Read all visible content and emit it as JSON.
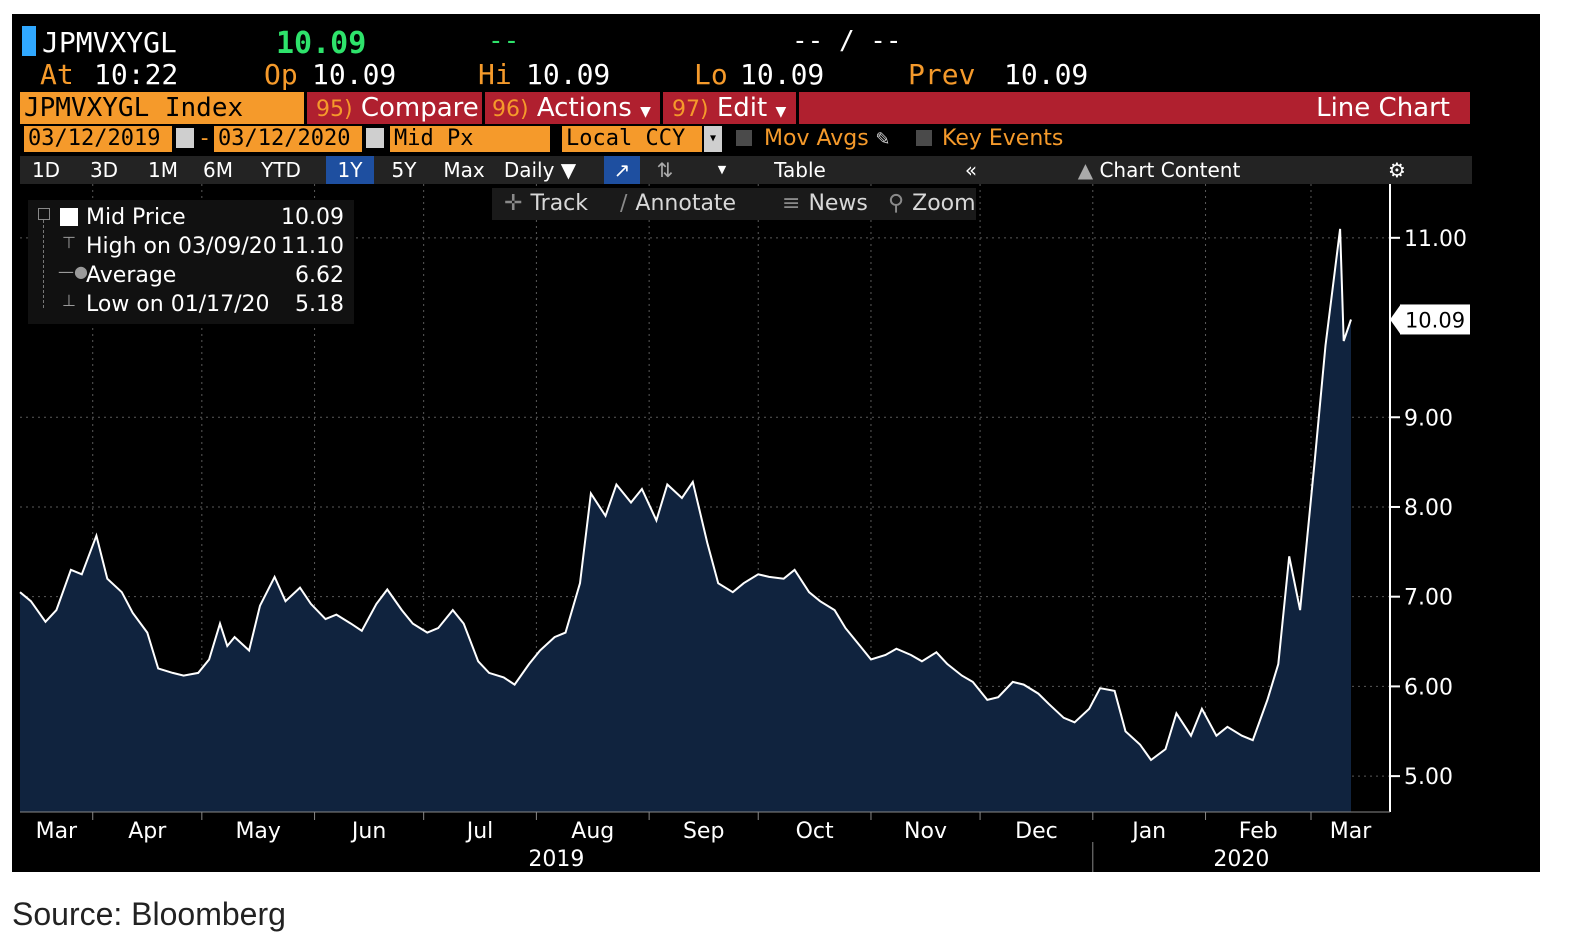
{
  "header": {
    "ticker": "JPMVXYGL",
    "last_price": "10.09",
    "change": "--",
    "bid_ask": "-- / --",
    "at_label": "At",
    "at_time": "10:22",
    "op_label": "Op",
    "op_value": "10.09",
    "hi_label": "Hi",
    "hi_value": "10.09",
    "lo_label": "Lo",
    "lo_value": "10.09",
    "prev_label": "Prev",
    "prev_value": "10.09"
  },
  "command_bar": {
    "security": "JPMVXYGL Index",
    "compare_num": "95)",
    "compare": "Compare",
    "actions_num": "96)",
    "actions": "Actions",
    "edit_num": "97)",
    "edit": "Edit",
    "chart_title": "Line Chart"
  },
  "settings": {
    "start_date": "03/12/2019",
    "end_date": "03/12/2020",
    "date_sep": "-",
    "field": "Mid Px",
    "currency": "Local CCY",
    "mov_avgs": "Mov Avgs",
    "key_events": "Key Events"
  },
  "periods": [
    "1D",
    "3D",
    "1M",
    "6M",
    "YTD",
    "1Y",
    "5Y",
    "Max"
  ],
  "active_period": "1Y",
  "toolbar": {
    "frequency": "Daily",
    "table": "Table",
    "collapse": "«",
    "chart_content": "Chart Content"
  },
  "tools": {
    "track": "Track",
    "annotate": "Annotate",
    "news": "News",
    "zoom": "Zoom"
  },
  "legend": {
    "mid_price_label": "Mid Price",
    "mid_price_value": "10.09",
    "high_label": "High on 03/09/20",
    "high_value": "11.10",
    "average_label": "Average",
    "average_value": "6.62",
    "low_label": "Low on 01/17/20",
    "low_value": "5.18"
  },
  "source": "Source: Bloomberg",
  "colors": {
    "background": "#000000",
    "area_fill": "#10233e",
    "line": "#ffffff",
    "accent_orange": "#f59a2b",
    "accent_red": "#b0202f",
    "last_green": "#2ee36b"
  },
  "chart_data": {
    "type": "area",
    "series_name": "Mid Price",
    "x_labels": [
      "Mar",
      "Apr",
      "May",
      "Jun",
      "Jul",
      "Aug",
      "Sep",
      "Oct",
      "Nov",
      "Dec",
      "Jan",
      "Feb",
      "Mar"
    ],
    "year_labels": [
      "2019",
      "2020"
    ],
    "y_ticks": [
      "5.00",
      "6.00",
      "7.00",
      "8.00",
      "9.00",
      "11.00"
    ],
    "ylim": [
      4.6,
      11.6
    ],
    "last_value_label": "10.09",
    "grid": true,
    "points": [
      [
        "2019-03-12",
        7.05
      ],
      [
        "2019-03-15",
        6.95
      ],
      [
        "2019-03-19",
        6.72
      ],
      [
        "2019-03-22",
        6.85
      ],
      [
        "2019-03-26",
        7.3
      ],
      [
        "2019-03-29",
        7.25
      ],
      [
        "2019-04-02",
        7.68
      ],
      [
        "2019-04-05",
        7.2
      ],
      [
        "2019-04-09",
        7.05
      ],
      [
        "2019-04-12",
        6.82
      ],
      [
        "2019-04-16",
        6.6
      ],
      [
        "2019-04-19",
        6.2
      ],
      [
        "2019-04-23",
        6.15
      ],
      [
        "2019-04-26",
        6.12
      ],
      [
        "2019-04-30",
        6.15
      ],
      [
        "2019-05-03",
        6.3
      ],
      [
        "2019-05-06",
        6.7
      ],
      [
        "2019-05-08",
        6.45
      ],
      [
        "2019-05-10",
        6.55
      ],
      [
        "2019-05-14",
        6.4
      ],
      [
        "2019-05-17",
        6.9
      ],
      [
        "2019-05-21",
        7.22
      ],
      [
        "2019-05-24",
        6.95
      ],
      [
        "2019-05-28",
        7.1
      ],
      [
        "2019-05-31",
        6.92
      ],
      [
        "2019-06-04",
        6.75
      ],
      [
        "2019-06-07",
        6.8
      ],
      [
        "2019-06-11",
        6.7
      ],
      [
        "2019-06-14",
        6.62
      ],
      [
        "2019-06-18",
        6.92
      ],
      [
        "2019-06-21",
        7.08
      ],
      [
        "2019-06-25",
        6.85
      ],
      [
        "2019-06-28",
        6.7
      ],
      [
        "2019-07-02",
        6.6
      ],
      [
        "2019-07-05",
        6.65
      ],
      [
        "2019-07-09",
        6.85
      ],
      [
        "2019-07-12",
        6.7
      ],
      [
        "2019-07-16",
        6.28
      ],
      [
        "2019-07-19",
        6.15
      ],
      [
        "2019-07-23",
        6.1
      ],
      [
        "2019-07-26",
        6.02
      ],
      [
        "2019-07-30",
        6.25
      ],
      [
        "2019-08-02",
        6.4
      ],
      [
        "2019-08-06",
        6.55
      ],
      [
        "2019-08-09",
        6.6
      ],
      [
        "2019-08-13",
        7.15
      ],
      [
        "2019-08-16",
        8.15
      ],
      [
        "2019-08-20",
        7.9
      ],
      [
        "2019-08-23",
        8.25
      ],
      [
        "2019-08-27",
        8.05
      ],
      [
        "2019-08-30",
        8.2
      ],
      [
        "2019-09-03",
        7.85
      ],
      [
        "2019-09-06",
        8.25
      ],
      [
        "2019-09-10",
        8.1
      ],
      [
        "2019-09-13",
        8.28
      ],
      [
        "2019-09-17",
        7.6
      ],
      [
        "2019-09-20",
        7.15
      ],
      [
        "2019-09-24",
        7.05
      ],
      [
        "2019-09-27",
        7.15
      ],
      [
        "2019-10-01",
        7.25
      ],
      [
        "2019-10-04",
        7.22
      ],
      [
        "2019-10-08",
        7.2
      ],
      [
        "2019-10-11",
        7.3
      ],
      [
        "2019-10-15",
        7.05
      ],
      [
        "2019-10-18",
        6.95
      ],
      [
        "2019-10-22",
        6.85
      ],
      [
        "2019-10-25",
        6.65
      ],
      [
        "2019-10-29",
        6.45
      ],
      [
        "2019-11-01",
        6.3
      ],
      [
        "2019-11-05",
        6.35
      ],
      [
        "2019-11-08",
        6.42
      ],
      [
        "2019-11-12",
        6.35
      ],
      [
        "2019-11-15",
        6.28
      ],
      [
        "2019-11-19",
        6.38
      ],
      [
        "2019-11-22",
        6.25
      ],
      [
        "2019-11-26",
        6.12
      ],
      [
        "2019-11-29",
        6.05
      ],
      [
        "2019-12-03",
        5.85
      ],
      [
        "2019-12-06",
        5.88
      ],
      [
        "2019-12-10",
        6.05
      ],
      [
        "2019-12-13",
        6.02
      ],
      [
        "2019-12-17",
        5.92
      ],
      [
        "2019-12-20",
        5.8
      ],
      [
        "2019-12-24",
        5.65
      ],
      [
        "2019-12-27",
        5.6
      ],
      [
        "2019-12-31",
        5.75
      ],
      [
        "2020-01-03",
        5.98
      ],
      [
        "2020-01-07",
        5.95
      ],
      [
        "2020-01-10",
        5.5
      ],
      [
        "2020-01-14",
        5.35
      ],
      [
        "2020-01-17",
        5.18
      ],
      [
        "2020-01-21",
        5.3
      ],
      [
        "2020-01-24",
        5.7
      ],
      [
        "2020-01-28",
        5.45
      ],
      [
        "2020-01-31",
        5.75
      ],
      [
        "2020-02-04",
        5.45
      ],
      [
        "2020-02-07",
        5.55
      ],
      [
        "2020-02-11",
        5.45
      ],
      [
        "2020-02-14",
        5.4
      ],
      [
        "2020-02-18",
        5.85
      ],
      [
        "2020-02-21",
        6.25
      ],
      [
        "2020-02-24",
        7.45
      ],
      [
        "2020-02-27",
        6.85
      ],
      [
        "2020-03-02",
        8.5
      ],
      [
        "2020-03-05",
        9.8
      ],
      [
        "2020-03-09",
        11.1
      ],
      [
        "2020-03-10",
        9.85
      ],
      [
        "2020-03-12",
        10.09
      ]
    ]
  }
}
